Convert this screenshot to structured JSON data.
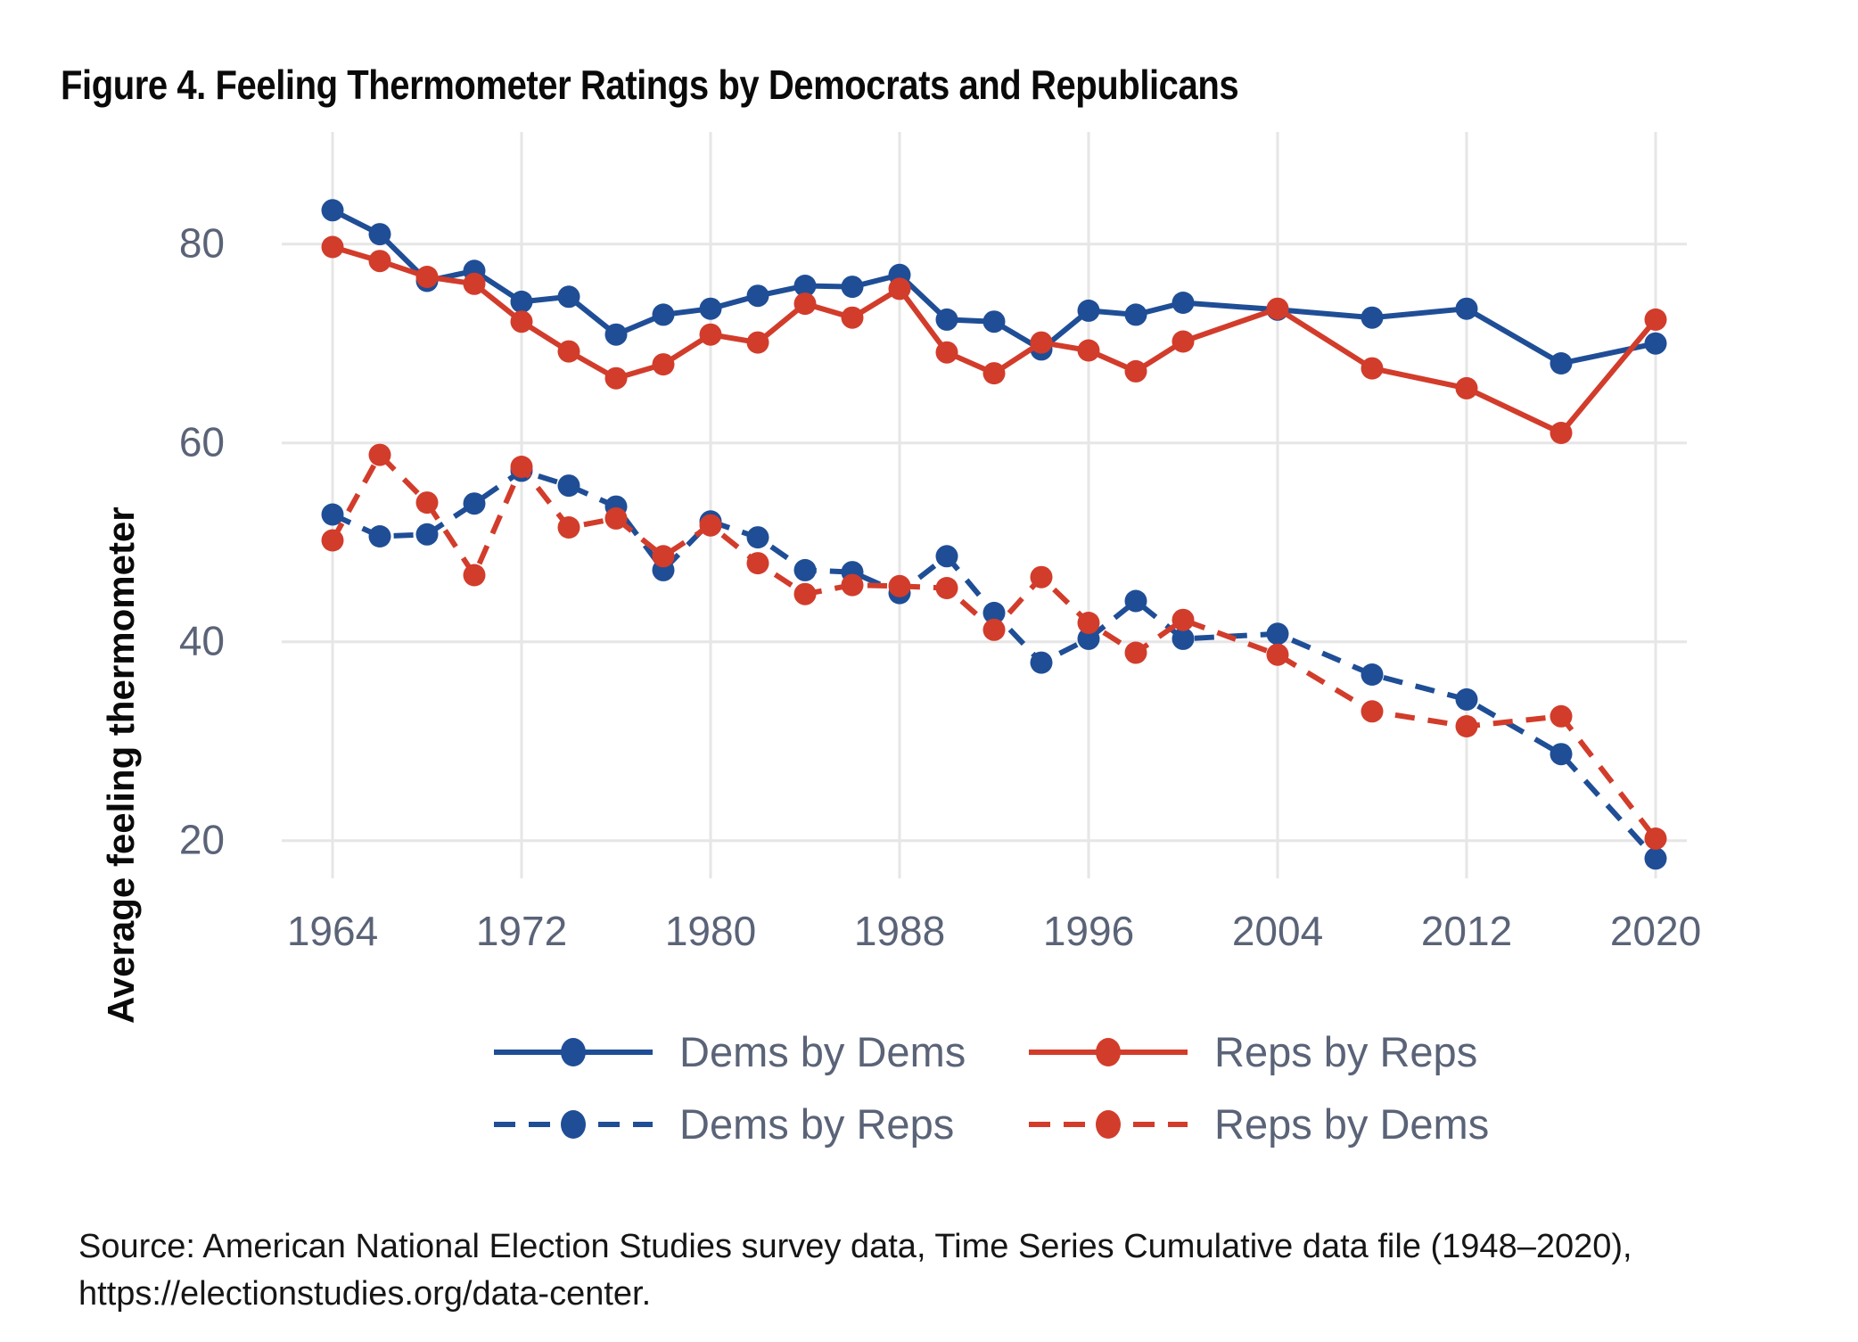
{
  "title": "Figure 4. Feeling Thermometer Ratings by Democrats and Republicans",
  "y_axis_title": "Average feeling thermometer",
  "source": {
    "line1": "Source: American National Election Studies survey data, Time Series Cumulative data file (1948–2020),",
    "line2": "https://electionstudies.org/data-center."
  },
  "colors": {
    "dem_blue": "#1f4e96",
    "rep_red": "#d23c2b",
    "grid": "#e6e6e6",
    "tick_text": "#5a6377",
    "legend_text": "#5a6377",
    "title_text": "#0a0a0a",
    "source_text": "#161616",
    "background": "#ffffff"
  },
  "legend": {
    "items": [
      {
        "label": "Dems by Dems",
        "color_key": "dem_blue",
        "dash": "solid"
      },
      {
        "label": "Reps by Reps",
        "color_key": "rep_red",
        "dash": "solid"
      },
      {
        "label": "Dems by Reps",
        "color_key": "dem_blue",
        "dash": "dashed"
      },
      {
        "label": "Reps by Dems",
        "color_key": "rep_red",
        "dash": "dashed"
      }
    ]
  },
  "chart_data": {
    "type": "line",
    "x": [
      1964,
      1966,
      1968,
      1970,
      1972,
      1974,
      1976,
      1978,
      1980,
      1982,
      1984,
      1986,
      1988,
      1990,
      1992,
      1994,
      1996,
      1998,
      2000,
      2004,
      2008,
      2012,
      2016,
      2020
    ],
    "series": [
      {
        "name": "Dems by Dems",
        "color_key": "dem_blue",
        "style": "solid",
        "values": [
          83.4,
          81.0,
          76.3,
          77.3,
          74.2,
          74.7,
          70.9,
          72.9,
          73.5,
          74.8,
          75.8,
          75.7,
          76.9,
          72.4,
          72.2,
          69.4,
          73.3,
          72.9,
          74.1,
          73.4,
          72.6,
          73.5,
          68.0,
          70.0
        ]
      },
      {
        "name": "Dems by Reps",
        "color_key": "dem_blue",
        "style": "dashed",
        "values": [
          52.8,
          50.6,
          50.8,
          53.9,
          57.2,
          55.7,
          53.6,
          47.2,
          52.1,
          50.5,
          47.2,
          47.0,
          44.9,
          48.6,
          42.9,
          37.9,
          40.3,
          44.1,
          40.3,
          40.8,
          36.7,
          34.2,
          28.7,
          18.2
        ]
      },
      {
        "name": "Reps by Reps",
        "color_key": "rep_red",
        "style": "solid",
        "values": [
          79.7,
          78.3,
          76.7,
          76.0,
          72.2,
          69.2,
          66.5,
          67.9,
          70.9,
          70.1,
          74.0,
          72.6,
          75.5,
          69.1,
          67.0,
          70.1,
          69.3,
          67.2,
          70.2,
          73.5,
          67.5,
          65.5,
          61.0,
          72.4
        ]
      },
      {
        "name": "Reps by Dems",
        "color_key": "rep_red",
        "style": "dashed",
        "values": [
          50.2,
          58.8,
          54.0,
          46.7,
          57.6,
          51.5,
          52.4,
          48.6,
          51.7,
          47.9,
          44.8,
          45.7,
          45.6,
          45.4,
          41.2,
          46.5,
          41.9,
          38.9,
          42.2,
          38.7,
          33.0,
          31.5,
          32.5,
          20.2
        ]
      }
    ],
    "x_ticks": [
      1964,
      1972,
      1980,
      1988,
      1996,
      2004,
      2012,
      2020
    ],
    "y_ticks": [
      80,
      60,
      40,
      20
    ],
    "xlim": [
      1962,
      2022
    ],
    "ylim": [
      15,
      90
    ],
    "xlabel": "",
    "ylabel": "Average feeling thermometer",
    "grid": true,
    "legend_position": "bottom",
    "marker": "circle"
  }
}
